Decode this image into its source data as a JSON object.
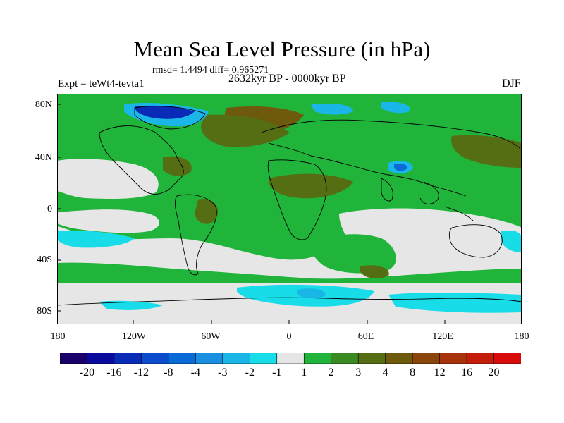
{
  "title": "Mean Sea Level Pressure (in hPa)",
  "stats_line": "rmsd= 1.4494 diff= 0.965271",
  "experiment": "Expt = teWt4-tevta1",
  "period": "2632kyr BP - 0000kyr BP",
  "season": "DJF",
  "latitude_labels": [
    "80N",
    "40N",
    "0",
    "40S",
    "80S"
  ],
  "longitude_labels": [
    "180",
    "120W",
    "60W",
    "0",
    "60E",
    "120E",
    "180"
  ],
  "legend": {
    "colors": [
      "#1a006b",
      "#0a0a9c",
      "#0a2ab8",
      "#0a4ccc",
      "#0a6ad8",
      "#1a8ee0",
      "#1ab6e8",
      "#18dce8",
      "#e6e6e6",
      "#20b43a",
      "#3a8a22",
      "#556e14",
      "#6e5a0c",
      "#8a460a",
      "#a8320a",
      "#c41e0a",
      "#d80a0a"
    ],
    "labels": [
      "-20",
      "-16",
      "-12",
      "-8",
      "-4",
      "-3",
      "-2",
      "-1",
      "1",
      "2",
      "3",
      "4",
      "8",
      "12",
      "16",
      "20"
    ]
  },
  "fields": {
    "background": "#e6e6e6",
    "light_green": "#20b43a",
    "mid_green": "#3a8a22",
    "olive": "#556e14",
    "brown": "#6e5a0c",
    "cyan": "#18dce8",
    "light_blue": "#1ab6e8",
    "blue": "#0a6ad8",
    "dark_blue": "#0a2ab8",
    "navy": "#1a006b"
  }
}
